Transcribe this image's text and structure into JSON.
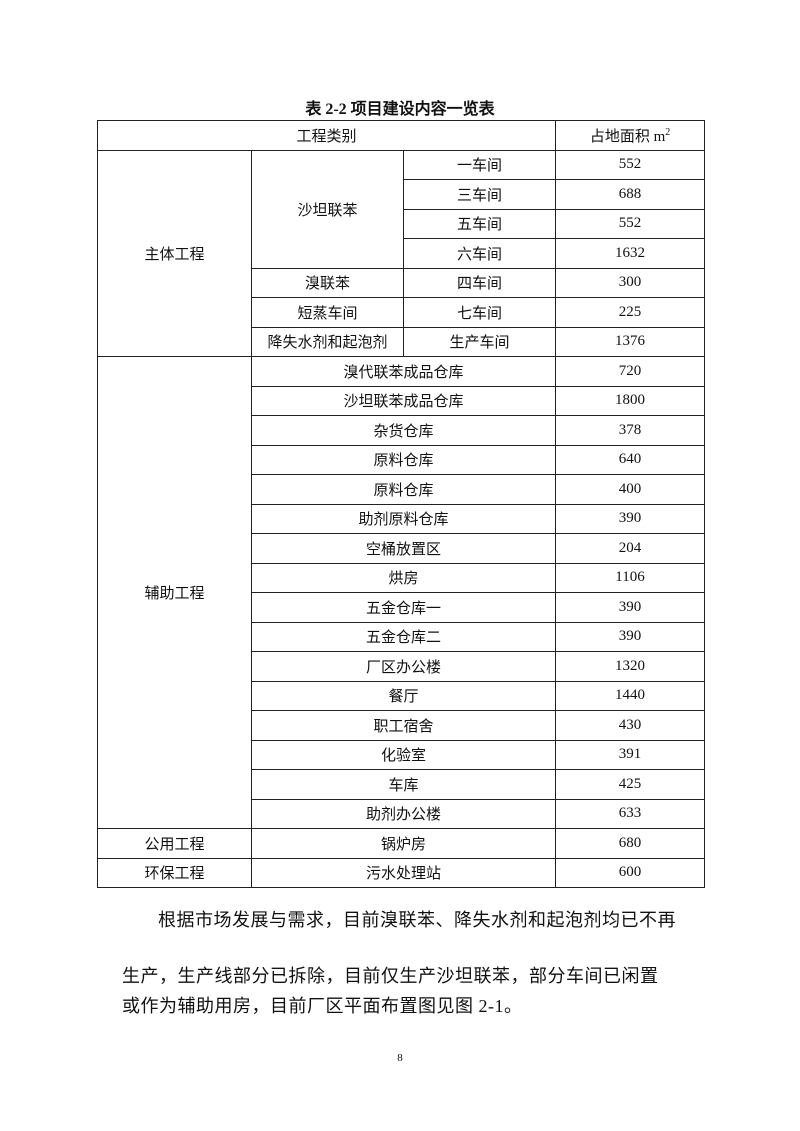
{
  "title": "表 2-2 项目建设内容一览表",
  "table": {
    "header": {
      "category": "工程类别",
      "area": "占地面积 m",
      "area_sup": "2"
    },
    "main": {
      "label": "主体工程",
      "groups": [
        {
          "name": "沙坦联苯",
          "rows": [
            {
              "unit": "一车间",
              "area": "552"
            },
            {
              "unit": "三车间",
              "area": "688"
            },
            {
              "unit": "五车间",
              "area": "552"
            },
            {
              "unit": "六车间",
              "area": "1632"
            }
          ]
        },
        {
          "name": "溴联苯",
          "rows": [
            {
              "unit": "四车间",
              "area": "300"
            }
          ]
        },
        {
          "name": "短蒸车间",
          "rows": [
            {
              "unit": "七车间",
              "area": "225"
            }
          ]
        },
        {
          "name": "降失水剂和起泡剂",
          "rows": [
            {
              "unit": "生产车间",
              "area": "1376"
            }
          ]
        }
      ]
    },
    "aux": {
      "label": "辅助工程",
      "rows": [
        {
          "name": "溴代联苯成品仓库",
          "area": "720"
        },
        {
          "name": "沙坦联苯成品仓库",
          "area": "1800"
        },
        {
          "name": "杂货仓库",
          "area": "378"
        },
        {
          "name": "原料仓库",
          "area": "640"
        },
        {
          "name": "原料仓库",
          "area": "400"
        },
        {
          "name": "助剂原料仓库",
          "area": "390"
        },
        {
          "name": "空桶放置区",
          "area": "204"
        },
        {
          "name": "烘房",
          "area": "1106"
        },
        {
          "name": "五金仓库一",
          "area": "390"
        },
        {
          "name": "五金仓库二",
          "area": "390"
        },
        {
          "name": "厂区办公楼",
          "area": "1320"
        },
        {
          "name": "餐厅",
          "area": "1440"
        },
        {
          "name": "职工宿舍",
          "area": "430"
        },
        {
          "name": "化验室",
          "area": "391"
        },
        {
          "name": "车库",
          "area": "425"
        },
        {
          "name": "助剂办公楼",
          "area": "633"
        }
      ]
    },
    "public": {
      "label": "公用工程",
      "name": "锅炉房",
      "area": "680"
    },
    "env": {
      "label": "环保工程",
      "name": "污水处理站",
      "area": "600"
    }
  },
  "paragraph": {
    "line1": "根据市场发展与需求，目前溴联苯、降失水剂和起泡剂均已不再",
    "line2": "生产，生产线部分已拆除，目前仅生产沙坦联苯，部分车间已闲置",
    "line3": "或作为辅助用房，目前厂区平面布置图见图 2-1。"
  },
  "page_number": "8"
}
